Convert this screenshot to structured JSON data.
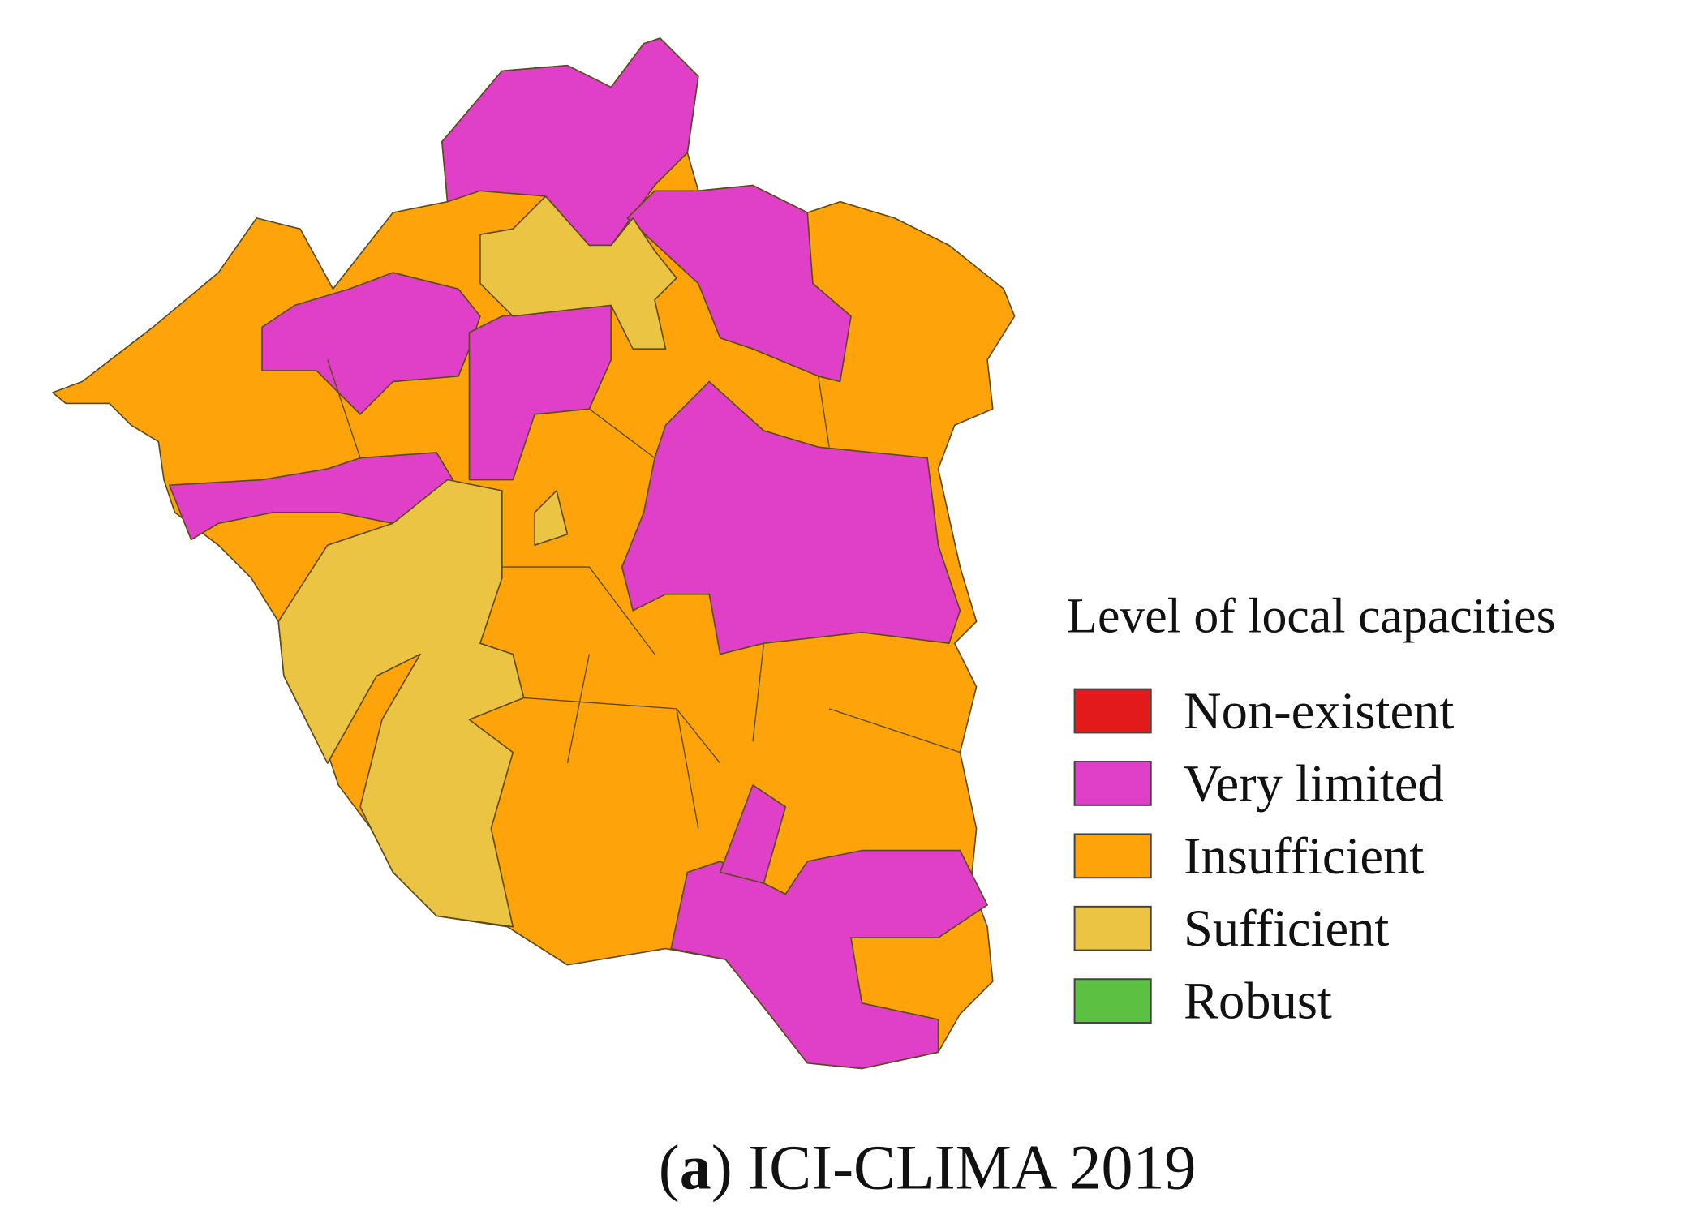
{
  "legend": {
    "title": "Level of local capacities",
    "items": [
      {
        "label": "Non-existent",
        "color": "#e31a1c"
      },
      {
        "label": "Very limited",
        "color": "#e03fc8"
      },
      {
        "label": "Insufficient",
        "color": "#fea30a"
      },
      {
        "label": "Sufficient",
        "color": "#ecc443"
      },
      {
        "label": "Robust",
        "color": "#5cc043"
      }
    ]
  },
  "caption": {
    "parts": [
      "(",
      "a",
      ") ICI-CLIMA 2019"
    ]
  }
}
